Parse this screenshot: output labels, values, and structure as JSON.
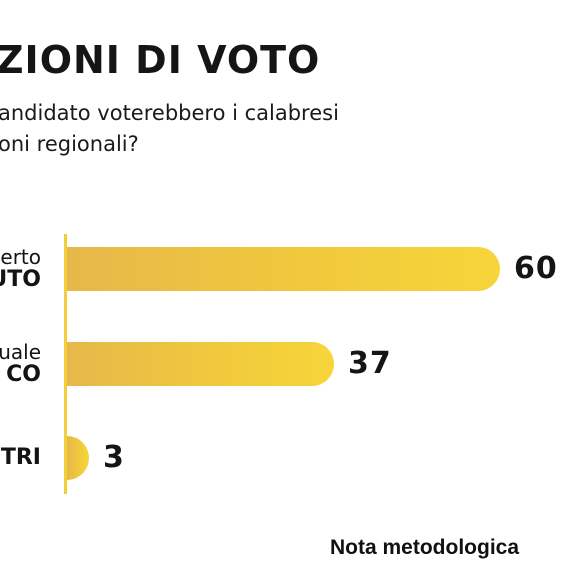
{
  "chart_data": {
    "type": "bar",
    "orientation": "horizontal",
    "title": "ZIONI DI VOTO",
    "subtitle_lines": [
      "andidato voterebbero i calabresi",
      "oni regionali?"
    ],
    "categories": [
      {
        "line1": "erto",
        "line2": "UTO"
      },
      {
        "line1": "uale",
        "line2": "CO"
      },
      {
        "line1": "",
        "line2": "TRI"
      }
    ],
    "values": [
      60,
      37,
      3
    ],
    "value_labels": [
      "60",
      "37",
      "3"
    ],
    "xlim": [
      0,
      60
    ],
    "grid": false,
    "legend": "none",
    "bar_color": "#f0c93c",
    "axis_color": "#f2cf3a"
  },
  "footer": {
    "note": "Nota metodologica"
  }
}
